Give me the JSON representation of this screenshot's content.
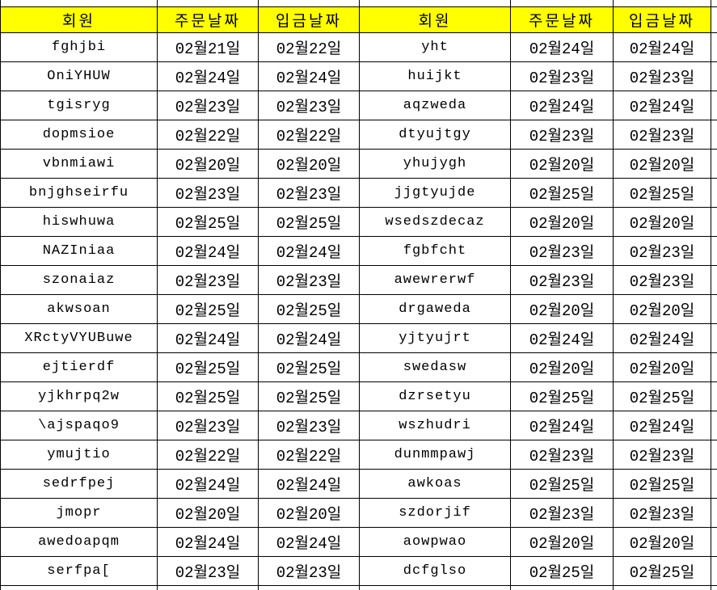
{
  "colors": {
    "header_bg": "#FFFF00",
    "border": "#000000",
    "text": "#000000"
  },
  "headers": [
    "회원",
    "주문날짜",
    "입금날짜",
    "회원",
    "주문날짜",
    "입금날짜"
  ],
  "rows": [
    {
      "member_left": "fghjbi",
      "order_left": "02월21일",
      "deposit_left": "02월22일",
      "member_right": "yht",
      "order_right": "02월24일",
      "deposit_right": "02월24일"
    },
    {
      "member_left": "OniYHUW",
      "order_left": "02월24일",
      "deposit_left": "02월24일",
      "member_right": "huijkt",
      "order_right": "02월23일",
      "deposit_right": "02월23일"
    },
    {
      "member_left": "tgisryg",
      "order_left": "02월23일",
      "deposit_left": "02월23일",
      "member_right": "aqzweda",
      "order_right": "02월24일",
      "deposit_right": "02월24일"
    },
    {
      "member_left": "dopmsioe",
      "order_left": "02월22일",
      "deposit_left": "02월22일",
      "member_right": "dtyujtgy",
      "order_right": "02월23일",
      "deposit_right": "02월23일"
    },
    {
      "member_left": "vbnmiawi",
      "order_left": "02월20일",
      "deposit_left": "02월20일",
      "member_right": "yhujygh",
      "order_right": "02월20일",
      "deposit_right": "02월20일"
    },
    {
      "member_left": "bnjghseirfu",
      "order_left": "02월23일",
      "deposit_left": "02월23일",
      "member_right": "jjgtyujde",
      "order_right": "02월25일",
      "deposit_right": "02월25일"
    },
    {
      "member_left": "hiswhuwa",
      "order_left": "02월25일",
      "deposit_left": "02월25일",
      "member_right": "wsedszdecaz",
      "order_right": "02월20일",
      "deposit_right": "02월20일"
    },
    {
      "member_left": "NAZIniaa",
      "order_left": "02월24일",
      "deposit_left": "02월24일",
      "member_right": "fgbfcht",
      "order_right": "02월23일",
      "deposit_right": "02월23일"
    },
    {
      "member_left": "szonaiaz",
      "order_left": "02월23일",
      "deposit_left": "02월23일",
      "member_right": "awewrerwf",
      "order_right": "02월23일",
      "deposit_right": "02월23일"
    },
    {
      "member_left": "akwsoan",
      "order_left": "02월25일",
      "deposit_left": "02월25일",
      "member_right": "drgaweda",
      "order_right": "02월20일",
      "deposit_right": "02월20일"
    },
    {
      "member_left": "XRctyVYUBuwe",
      "order_left": "02월24일",
      "deposit_left": "02월24일",
      "member_right": "yjtyujrt",
      "order_right": "02월24일",
      "deposit_right": "02월24일"
    },
    {
      "member_left": "ejtierdf",
      "order_left": "02월25일",
      "deposit_left": "02월25일",
      "member_right": "swedasw",
      "order_right": "02월20일",
      "deposit_right": "02월20일"
    },
    {
      "member_left": "yjkhrpq2w",
      "order_left": "02월25일",
      "deposit_left": "02월25일",
      "member_right": "dzrsetyu",
      "order_right": "02월25일",
      "deposit_right": "02월25일"
    },
    {
      "member_left": "\\ajspaqo9",
      "order_left": "02월23일",
      "deposit_left": "02월23일",
      "member_right": "wszhudri",
      "order_right": "02월24일",
      "deposit_right": "02월24일"
    },
    {
      "member_left": "ymujtio",
      "order_left": "02월22일",
      "deposit_left": "02월22일",
      "member_right": "dunmmpawj",
      "order_right": "02월23일",
      "deposit_right": "02월23일"
    },
    {
      "member_left": "sedrfpej",
      "order_left": "02월24일",
      "deposit_left": "02월24일",
      "member_right": "awkoas",
      "order_right": "02월25일",
      "deposit_right": "02월25일"
    },
    {
      "member_left": "jmopr",
      "order_left": "02월20일",
      "deposit_left": "02월20일",
      "member_right": "szdorjif",
      "order_right": "02월23일",
      "deposit_right": "02월23일"
    },
    {
      "member_left": "awedoapqm",
      "order_left": "02월24일",
      "deposit_left": "02월24일",
      "member_right": "aowpwao",
      "order_right": "02월20일",
      "deposit_right": "02월20일"
    },
    {
      "member_left": "serfpa[",
      "order_left": "02월23일",
      "deposit_left": "02월23일",
      "member_right": "dcfglso",
      "order_right": "02월25일",
      "deposit_right": "02월25일"
    }
  ]
}
